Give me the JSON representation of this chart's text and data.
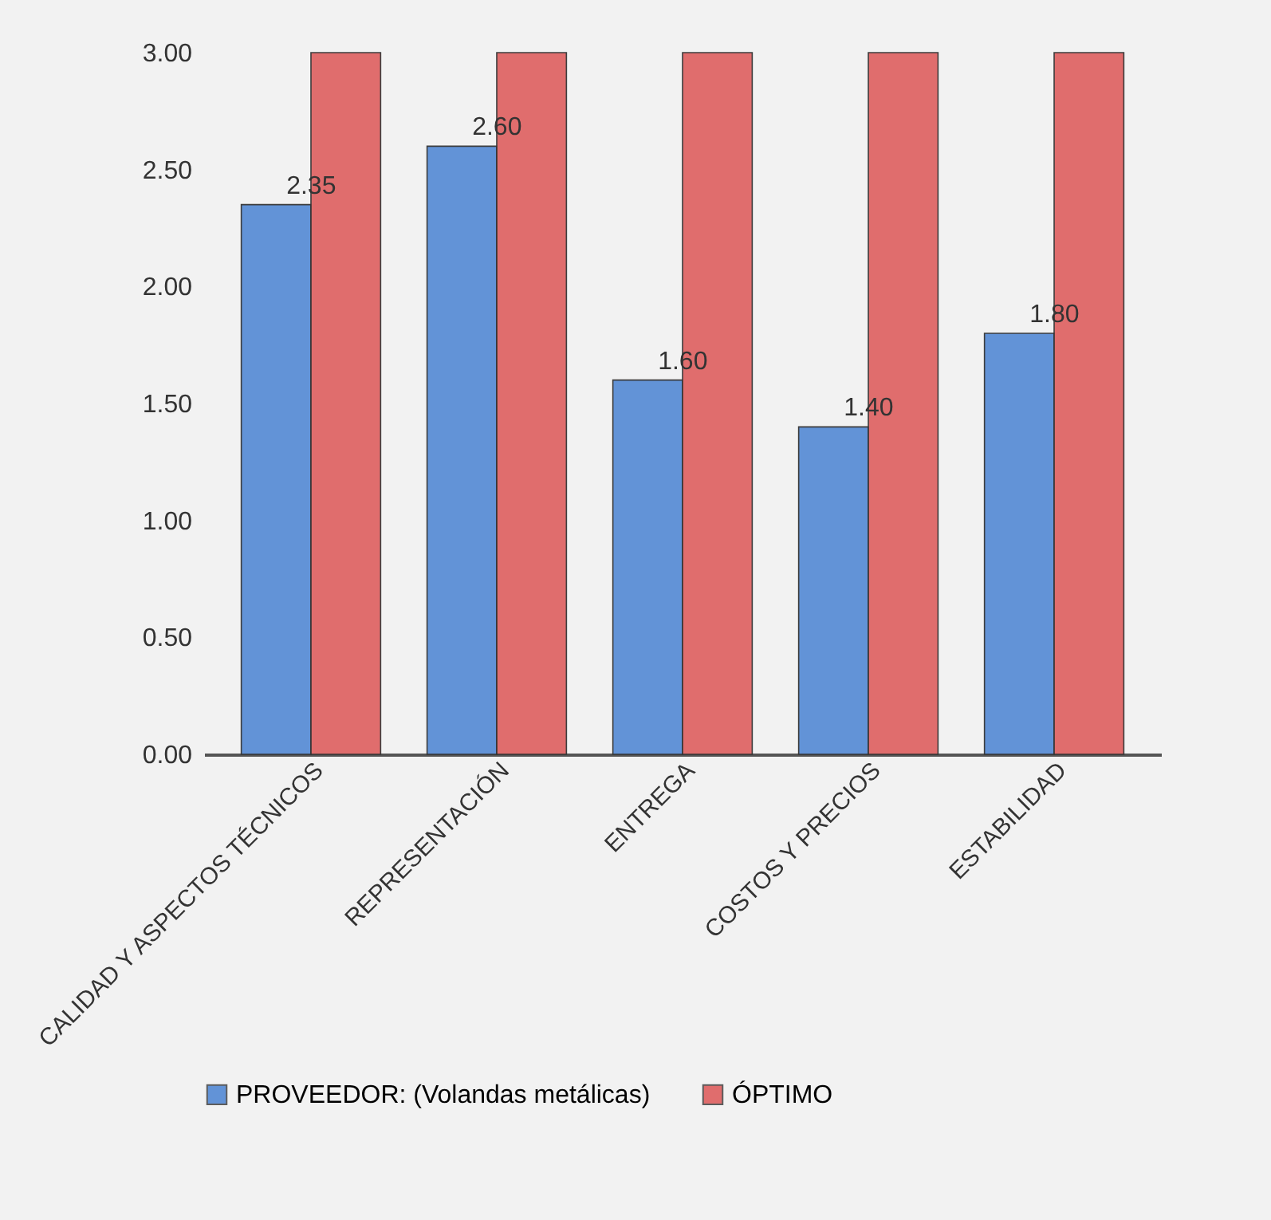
{
  "chart_data": {
    "type": "bar",
    "categories": [
      "CALIDAD Y ASPECTOS TÉCNICOS",
      "REPRESENTACIÓN",
      "ENTREGA",
      "COSTOS Y PRECIOS",
      "ESTABILIDAD"
    ],
    "series": [
      {
        "name": "PROVEEDOR: (Volandas metálicas)",
        "color": "#5b8ed6",
        "values": [
          2.35,
          2.6,
          1.6,
          1.4,
          1.8
        ],
        "value_labels": [
          "2.35",
          "2.60",
          "1.60",
          "1.40",
          "1.80"
        ]
      },
      {
        "name": "ÓPTIMO",
        "color": "#e06666",
        "values": [
          3,
          3,
          3,
          3,
          3
        ]
      }
    ],
    "ylim": [
      0,
      3
    ],
    "yticks": [
      {
        "value": 0,
        "label": "0.00"
      },
      {
        "value": 0.5,
        "label": "0.50"
      },
      {
        "value": 1,
        "label": "1.00"
      },
      {
        "value": 1.5,
        "label": "1.50"
      },
      {
        "value": 2,
        "label": "2.00"
      },
      {
        "value": 2.5,
        "label": "2.50"
      },
      {
        "value": 3,
        "label": "3.00"
      }
    ],
    "grid": false,
    "legend": "bottom"
  }
}
